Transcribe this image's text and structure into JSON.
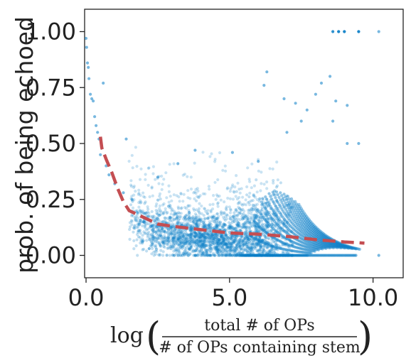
{
  "chart_data": {
    "type": "scatter",
    "title": "",
    "ylabel": "prob. of being echoed",
    "xlabel": {
      "prefix": "log",
      "numerator": "total # of OPs",
      "denominator": "# of OPs containing stem"
    },
    "xlim": [
      -0.05,
      11.05
    ],
    "ylim": [
      -0.1,
      1.1
    ],
    "xticks": [
      0.0,
      5.0,
      10.0
    ],
    "xtick_labels": [
      "0.0",
      "5.0",
      "10.0"
    ],
    "yticks": [
      0.0,
      0.25,
      0.5,
      0.75,
      1.0
    ],
    "ytick_labels": [
      "0.00",
      "0.25",
      "0.50",
      "0.75",
      "1.00"
    ],
    "grid": false,
    "colors": {
      "points": "#0a7ec7",
      "trend": "#c44e52"
    },
    "series": [
      {
        "kind": "scatter",
        "note_points": "dense cloud of ~10k points; representative outliers listed",
        "points": [
          [
            0.0,
            0.97
          ],
          [
            0.02,
            0.93
          ],
          [
            0.05,
            0.86
          ],
          [
            0.08,
            0.84
          ],
          [
            0.1,
            0.79
          ],
          [
            0.15,
            0.72
          ],
          [
            0.2,
            0.7
          ],
          [
            0.25,
            0.69
          ],
          [
            0.3,
            0.62
          ],
          [
            0.35,
            0.58
          ],
          [
            0.4,
            0.55
          ],
          [
            0.45,
            0.52
          ],
          [
            0.5,
            0.45
          ],
          [
            0.6,
            0.77
          ],
          [
            0.55,
            0.48
          ],
          [
            0.7,
            0.4
          ],
          [
            0.8,
            0.36
          ],
          [
            1.0,
            0.32
          ],
          [
            1.3,
            0.28
          ],
          [
            1.4,
            0.52
          ],
          [
            1.5,
            0.2
          ],
          [
            1.6,
            0.25
          ],
          [
            1.8,
            0.19
          ],
          [
            2.0,
            0.15
          ],
          [
            2.2,
            0.03
          ],
          [
            2.5,
            0.35
          ],
          [
            3.2,
            0.41
          ],
          [
            3.8,
            0.47
          ],
          [
            5.1,
            0.46
          ],
          [
            6.0,
            0.42
          ],
          [
            6.2,
            0.76
          ],
          [
            6.3,
            0.82
          ],
          [
            6.9,
            0.7
          ],
          [
            7.0,
            0.55
          ],
          [
            7.3,
            0.68
          ],
          [
            7.5,
            0.6
          ],
          [
            7.7,
            0.65
          ],
          [
            8.0,
            0.72
          ],
          [
            8.2,
            0.77
          ],
          [
            8.5,
            0.8
          ],
          [
            8.6,
            0.6
          ],
          [
            8.7,
            0.69
          ],
          [
            8.8,
            1.0
          ],
          [
            9.0,
            1.0
          ],
          [
            9.1,
            0.67
          ],
          [
            9.5,
            1.0
          ],
          [
            9.5,
            0.5
          ],
          [
            10.2,
            1.0
          ],
          [
            10.2,
            0.0
          ],
          [
            9.1,
            0.5
          ]
        ]
      },
      {
        "kind": "trend",
        "style": "dashed",
        "points": [
          [
            0.5,
            0.53
          ],
          [
            0.55,
            0.48
          ],
          [
            0.7,
            0.43
          ],
          [
            0.9,
            0.37
          ],
          [
            1.1,
            0.3
          ],
          [
            1.3,
            0.24
          ],
          [
            1.5,
            0.2
          ],
          [
            2.0,
            0.17
          ],
          [
            2.5,
            0.14
          ],
          [
            3.0,
            0.13
          ],
          [
            4.0,
            0.115
          ],
          [
            5.0,
            0.1
          ],
          [
            6.0,
            0.095
          ],
          [
            7.0,
            0.085
          ],
          [
            8.0,
            0.07
          ],
          [
            9.0,
            0.06
          ],
          [
            9.7,
            0.055
          ]
        ]
      }
    ]
  }
}
